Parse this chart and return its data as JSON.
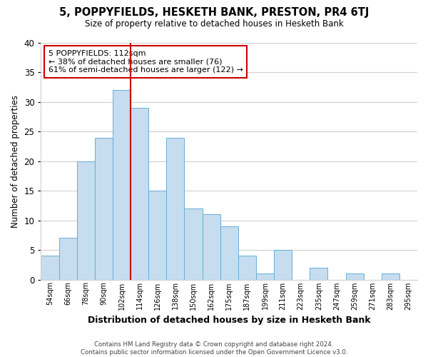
{
  "title": "5, POPPYFIELDS, HESKETH BANK, PRESTON, PR4 6TJ",
  "subtitle": "Size of property relative to detached houses in Hesketh Bank",
  "xlabel": "Distribution of detached houses by size in Hesketh Bank",
  "ylabel": "Number of detached properties",
  "bar_color": "#c5ddef",
  "bar_edge_color": "#6aadd5",
  "categories": [
    "54sqm",
    "66sqm",
    "78sqm",
    "90sqm",
    "102sqm",
    "114sqm",
    "126sqm",
    "138sqm",
    "150sqm",
    "162sqm",
    "175sqm",
    "187sqm",
    "199sqm",
    "211sqm",
    "223sqm",
    "235sqm",
    "247sqm",
    "259sqm",
    "271sqm",
    "283sqm",
    "295sqm"
  ],
  "values": [
    4,
    7,
    20,
    24,
    32,
    29,
    15,
    24,
    12,
    11,
    9,
    4,
    1,
    5,
    0,
    2,
    0,
    1,
    0,
    1,
    0
  ],
  "ylim": [
    0,
    40
  ],
  "yticks": [
    0,
    5,
    10,
    15,
    20,
    25,
    30,
    35,
    40
  ],
  "vline_x": 4.5,
  "vline_color": "#cc0000",
  "annotation_line1": "5 POPPYFIELDS: 112sqm",
  "annotation_line2": "← 38% of detached houses are smaller (76)",
  "annotation_line3": "61% of semi-detached houses are larger (122) →",
  "footer1": "Contains HM Land Registry data © Crown copyright and database right 2024.",
  "footer2": "Contains public sector information licensed under the Open Government Licence v3.0.",
  "background_color": "#ffffff",
  "grid_color": "#d0d0d0"
}
